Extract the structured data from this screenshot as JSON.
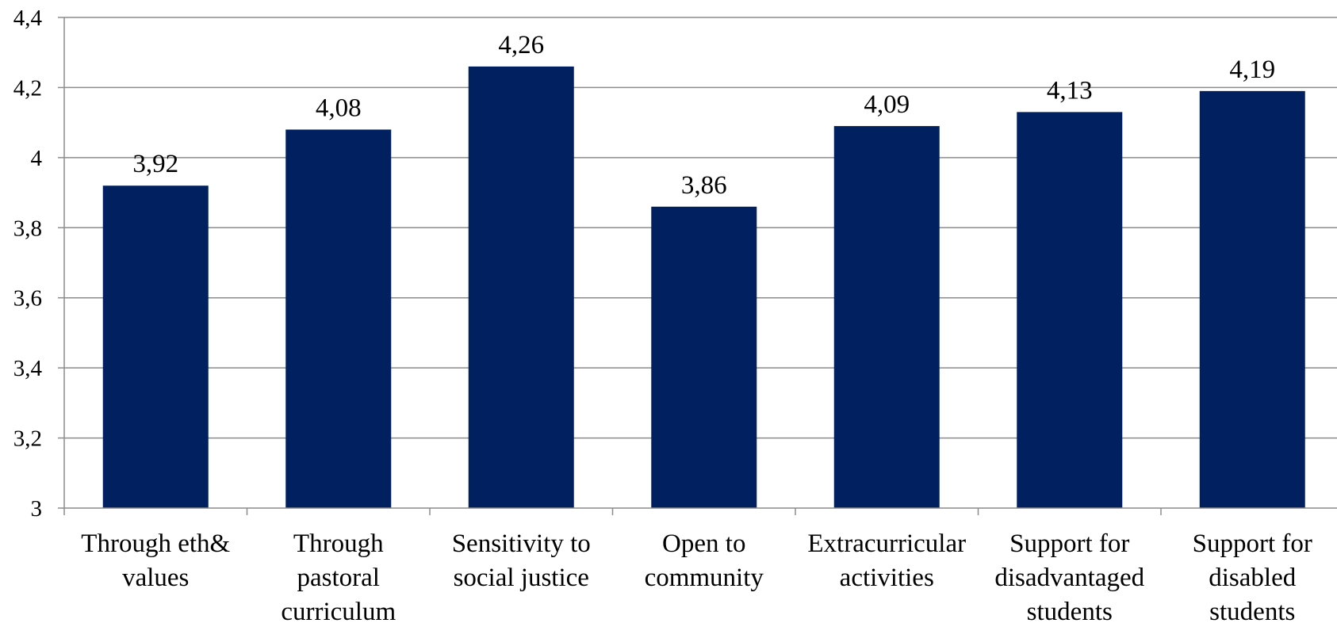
{
  "chart_data": {
    "type": "bar",
    "categories": [
      [
        "Through eth&",
        "values"
      ],
      [
        "Through",
        "pastoral",
        "curriculum"
      ],
      [
        "Sensitivity to",
        "social justice"
      ],
      [
        "Open to",
        "community"
      ],
      [
        "Extracurricular",
        "activities"
      ],
      [
        "Support for",
        "disadvantaged",
        "students"
      ],
      [
        "Support for",
        "disabled",
        "students"
      ]
    ],
    "values": [
      3.92,
      4.08,
      4.26,
      3.86,
      4.09,
      4.13,
      4.19
    ],
    "value_labels": [
      "3,92",
      "4,08",
      "4,26",
      "3,86",
      "4,09",
      "4,13",
      "4,19"
    ],
    "ylim": [
      3,
      4.4
    ],
    "yticks": [
      3,
      3.2,
      3.4,
      3.6,
      3.8,
      4,
      4.2,
      4.4
    ],
    "ytick_labels": [
      "3",
      "3,2",
      "3,4",
      "3,6",
      "3,8",
      "4",
      "4,2",
      "4,4"
    ],
    "grid": true,
    "legend": "none",
    "bar_color": "#002060",
    "title": "",
    "xlabel": "",
    "ylabel": ""
  }
}
